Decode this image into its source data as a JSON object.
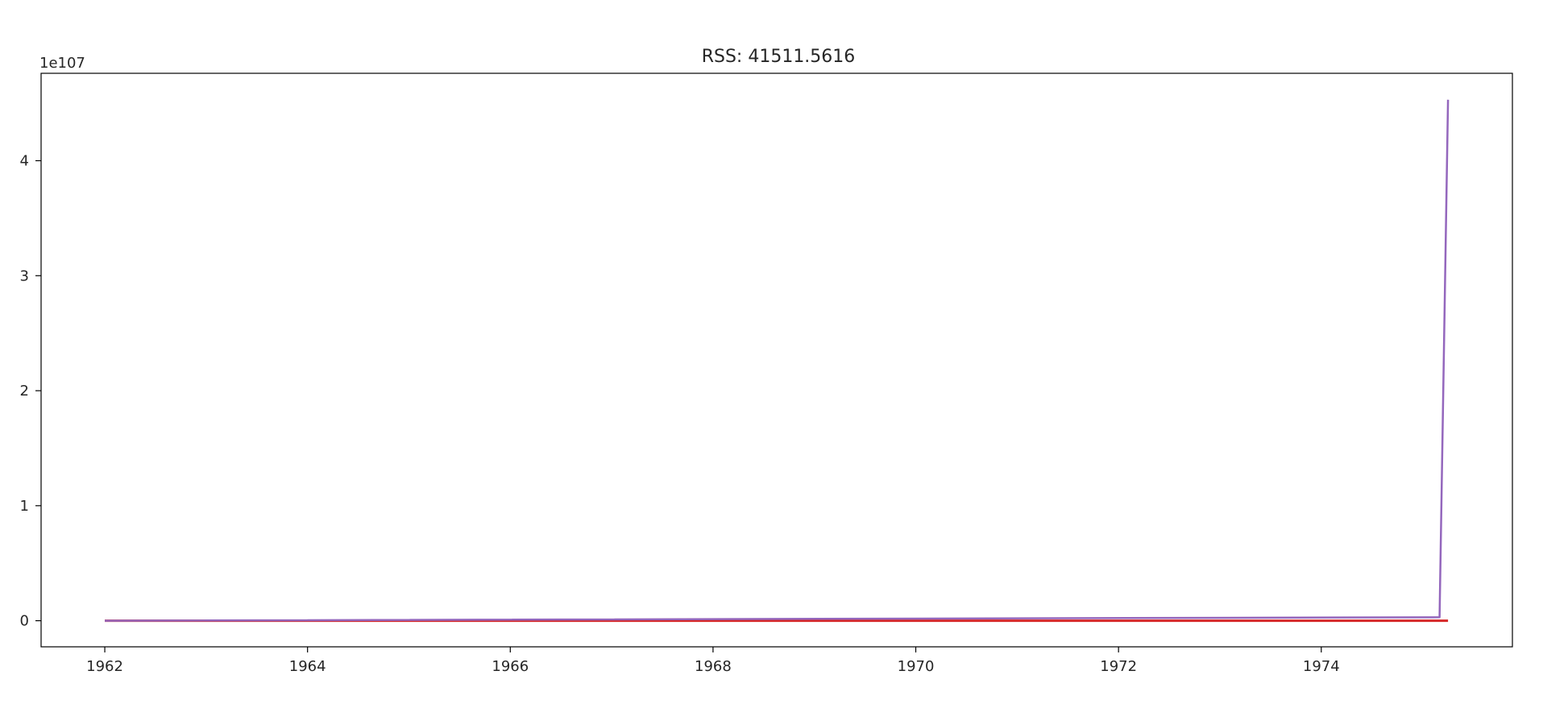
{
  "chart_data": {
    "type": "line",
    "title": "RSS: 41511.5616",
    "xlabel": "",
    "ylabel": "",
    "y_offset_text": "1e107",
    "xlim": [
      "1961-05-15",
      "1975-11-20"
    ],
    "ylim": [
      -2.27,
      47.6
    ],
    "y_unit_multiplier": "1e107",
    "x_ticks": [
      "1962",
      "1964",
      "1966",
      "1968",
      "1970",
      "1972",
      "1974"
    ],
    "y_ticks": [
      "0",
      "1",
      "2",
      "3",
      "4"
    ],
    "grid": false,
    "series": [
      {
        "color": "#d62728",
        "x": [
          "1962-01",
          "1975-04"
        ],
        "y": [
          0,
          0
        ]
      },
      {
        "color": "#9467bd",
        "x": [
          "1962-01",
          "1975-03",
          "1975-04"
        ],
        "y": [
          0,
          0.03,
          4.53
        ]
      }
    ]
  }
}
